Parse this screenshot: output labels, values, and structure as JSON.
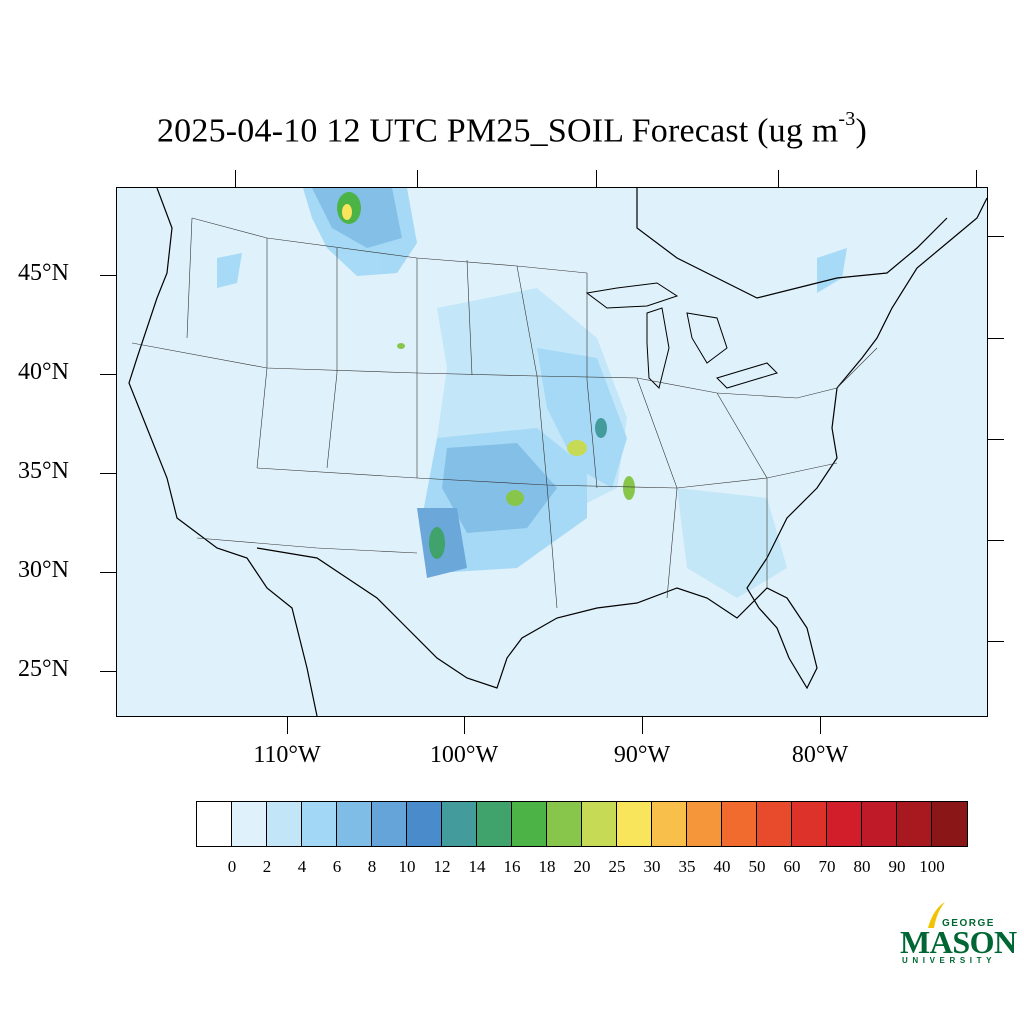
{
  "title": {
    "main": "2025-04-10 12 UTC PM25_SOIL Forecast (ug m",
    "superscript": "-3",
    "close": ")"
  },
  "map": {
    "region": "Contiguous United States",
    "background_color": "#dff1fb",
    "lat_labels": [
      "45°N",
      "40°N",
      "35°N",
      "30°N",
      "25°N"
    ],
    "lon_labels": [
      "110°W",
      "100°W",
      "90°W",
      "80°W"
    ]
  },
  "colorbar": {
    "colors": [
      "#ffffff",
      "#dff1fb",
      "#c2e6f8",
      "#a2d8f5",
      "#80bde6",
      "#65a4d8",
      "#4a8ccb",
      "#449b9b",
      "#3fa36b",
      "#4cb446",
      "#88c64b",
      "#c6da56",
      "#f8e55c",
      "#f9bf4b",
      "#f6963b",
      "#f16b2f",
      "#e84b2c",
      "#dd322a",
      "#d21e2b",
      "#be1a27",
      "#a7181f",
      "#8b1618"
    ],
    "labels": [
      "0",
      "2",
      "4",
      "6",
      "8",
      "10",
      "12",
      "14",
      "16",
      "18",
      "20",
      "25",
      "30",
      "35",
      "40",
      "50",
      "60",
      "70",
      "80",
      "90",
      "100"
    ]
  },
  "logo": {
    "top": "GEORGE",
    "main": "MASON",
    "bottom": "UNIVERSITY",
    "color": "#006633",
    "accent": "#f2c300"
  }
}
